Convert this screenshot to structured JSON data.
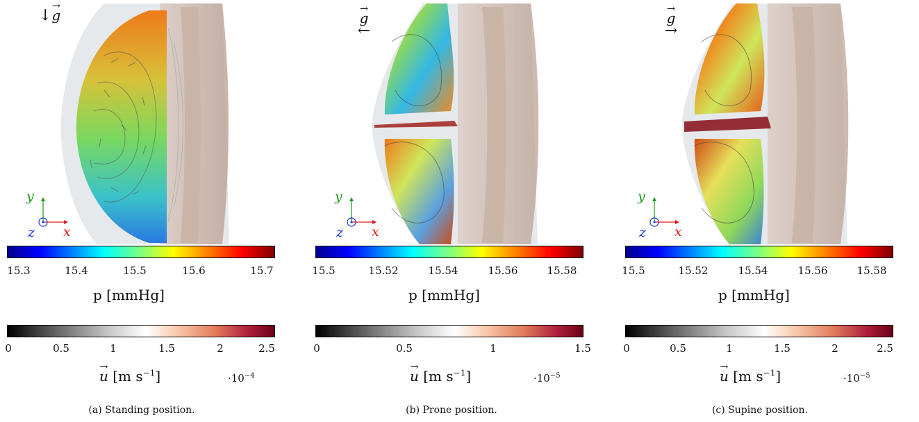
{
  "panels": [
    {
      "caption": "(a) Standing position.",
      "gravity_symbol": "g",
      "gravity_direction": "down",
      "axes": {
        "y": "y",
        "x": "x",
        "z": "z"
      },
      "pressure_bar": {
        "label": "p [mmHg]",
        "ticks": [
          "15.3",
          "15.4",
          "15.5",
          "15.6",
          "15.7"
        ],
        "range": [
          15.27,
          15.73
        ]
      },
      "velocity_bar": {
        "label_symbol": "u",
        "label_unit": "[m s",
        "label_exp": "−1",
        "label_close": "]",
        "ticks": [
          "0",
          "0.5",
          "1",
          "1.5",
          "2",
          "2.5"
        ],
        "range": [
          0,
          2.5
        ],
        "multiplier": "·10",
        "multiplier_exp": "−4"
      }
    },
    {
      "caption": "(b) Prone position.",
      "gravity_symbol": "g",
      "gravity_direction": "left",
      "axes": {
        "y": "y",
        "x": "x",
        "z": "z"
      },
      "pressure_bar": {
        "label": "p [mmHg]",
        "ticks": [
          "15.5",
          "15.52",
          "15.54",
          "15.56",
          "15.58"
        ],
        "range": [
          15.494,
          15.584
        ]
      },
      "velocity_bar": {
        "label_symbol": "u",
        "label_unit": "[m s",
        "label_exp": "−1",
        "label_close": "]",
        "ticks": [
          "0",
          "0.5",
          "1",
          "1.5"
        ],
        "range": [
          0,
          1.5
        ],
        "multiplier": "·10",
        "multiplier_exp": "−5"
      }
    },
    {
      "caption": "(c) Supine position.",
      "gravity_symbol": "g",
      "gravity_direction": "right",
      "axes": {
        "y": "y",
        "x": "x",
        "z": "z"
      },
      "pressure_bar": {
        "label": "p [mmHg]",
        "ticks": [
          "15.5",
          "15.52",
          "15.54",
          "15.56",
          "15.58"
        ],
        "range": [
          15.494,
          15.584
        ]
      },
      "velocity_bar": {
        "label_symbol": "u",
        "label_unit": "[m s",
        "label_exp": "−1",
        "label_close": "]",
        "ticks": [
          "0",
          "0.5",
          "1",
          "1.5",
          "2",
          "2.5"
        ],
        "range": [
          0,
          2.5
        ],
        "multiplier": "·10",
        "multiplier_exp": "−5"
      }
    }
  ],
  "colors": {
    "jet": [
      "#00008f",
      "#0000ff",
      "#00bfff",
      "#00ffff",
      "#7fff7f",
      "#ffff00",
      "#ff8000",
      "#ff0000",
      "#800000"
    ],
    "velocity": [
      "#000000",
      "#6e6e6e",
      "#c8c8c8",
      "#ffffff",
      "#f7c7a8",
      "#e07b5a",
      "#b0203e",
      "#6b0018"
    ],
    "axis_x": "#e0191b",
    "axis_y": "#1a9a1a",
    "axis_z": "#1a33d6"
  }
}
